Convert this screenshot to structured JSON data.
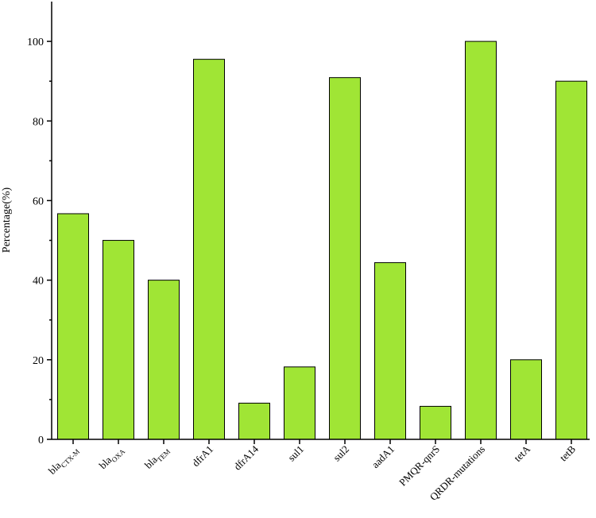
{
  "chart_data": {
    "type": "bar",
    "title": "",
    "xlabel": "",
    "ylabel": "Percentage(%)",
    "ylim": [
      0,
      110
    ],
    "yticks": [
      0,
      20,
      40,
      60,
      80,
      100
    ],
    "grid": false,
    "bar_color": "#a0e535",
    "categories": [
      {
        "base": "bla",
        "sub": "CTX-M"
      },
      {
        "base": "bla",
        "sub": "OXA"
      },
      {
        "base": "bla",
        "sub": "TEM"
      },
      {
        "base": "dfrA1",
        "sub": ""
      },
      {
        "base": "dfrA14",
        "sub": ""
      },
      {
        "base": "sul1",
        "sub": ""
      },
      {
        "base": "sul2",
        "sub": ""
      },
      {
        "base": "aadA1",
        "sub": ""
      },
      {
        "base": "PMQR-qnrS",
        "sub": ""
      },
      {
        "base": "QRDR-mutations",
        "sub": ""
      },
      {
        "base": "tetA",
        "sub": ""
      },
      {
        "base": "tetB",
        "sub": ""
      }
    ],
    "values": [
      56.7,
      50,
      40,
      95.5,
      9.1,
      18.2,
      90.9,
      44.4,
      8.3,
      100,
      20,
      90
    ]
  }
}
